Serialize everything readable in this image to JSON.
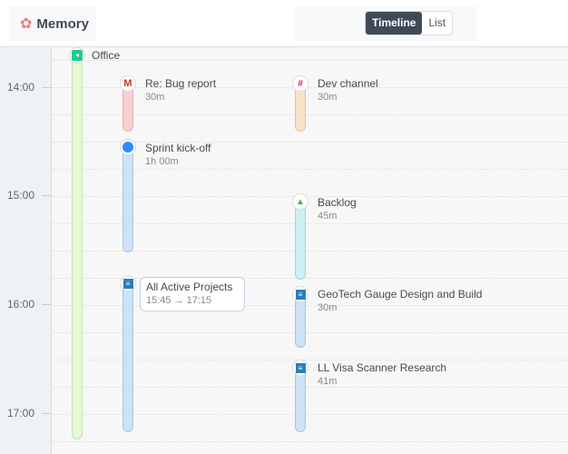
{
  "header": {
    "app_title": "Memory",
    "views": [
      "Timeline",
      "List"
    ],
    "active_view": "Timeline"
  },
  "hours": [
    "14:00",
    "15:00",
    "16:00",
    "17:00"
  ],
  "events": [
    {
      "title": "Office",
      "duration": "",
      "icon": "location-arrow-icon",
      "color": "#e6f8d6"
    },
    {
      "title": "Re: Bug report",
      "duration": "30m",
      "icon": "gmail-icon",
      "color": "#f7cfcf"
    },
    {
      "title": "Sprint kick-off",
      "duration": "1h 00m",
      "icon": "zoom-icon",
      "color": "#cde2f5"
    },
    {
      "title": "All Active Projects",
      "duration": "15:45 → 17:15",
      "icon": "document-icon",
      "color": "#cde2f5"
    },
    {
      "title": "Dev channel",
      "duration": "30m",
      "icon": "slack-icon",
      "color": "#f7e3c8"
    },
    {
      "title": "Backlog",
      "duration": "45m",
      "icon": "backlog-icon",
      "color": "#cdf0f4"
    },
    {
      "title": "GeoTech Gauge Design and Build",
      "duration": "30m",
      "icon": "document-icon",
      "color": "#cde2f5"
    },
    {
      "title": "LL Visa Scanner Research",
      "duration": "41m",
      "icon": "document-icon",
      "color": "#cde2f5"
    }
  ]
}
